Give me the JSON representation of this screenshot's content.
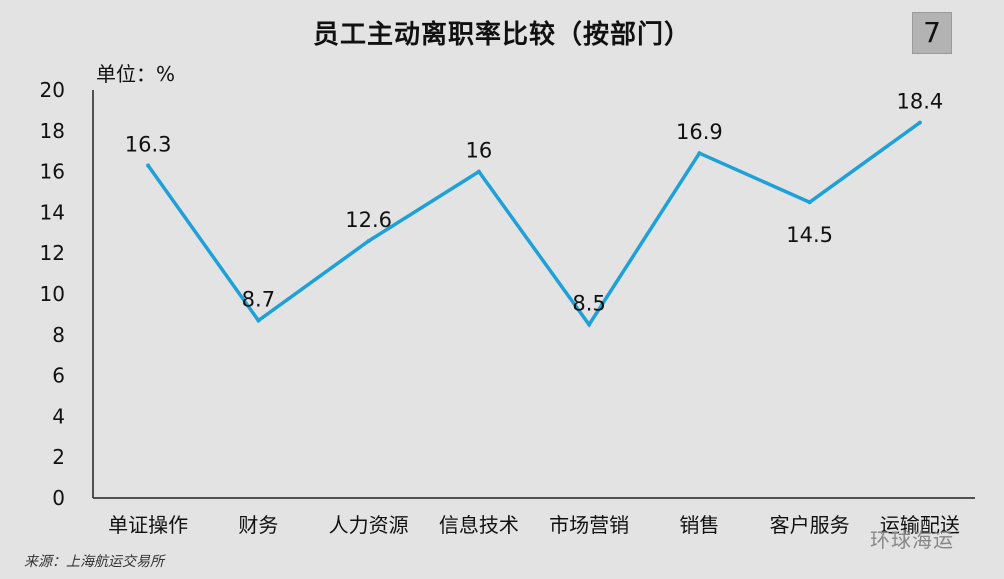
{
  "header": {
    "title": "员工主动离职率比较（按部门）",
    "page_number": "7"
  },
  "unit_label": "单位：%",
  "source_note": "来源：上海航运交易所",
  "watermark": "环球海运",
  "colors": {
    "background": "#e3e3e3",
    "line": "#1ea0d8",
    "axis": "#222222"
  },
  "chart_data": {
    "type": "line",
    "title": "员工主动离职率比较（按部门）",
    "xlabel": "",
    "ylabel": "单位：%",
    "ylim": [
      0,
      20
    ],
    "yticks": [
      0,
      2,
      4,
      6,
      8,
      10,
      12,
      14,
      16,
      18,
      20
    ],
    "grid": false,
    "categories": [
      "单证操作",
      "财务",
      "人力资源",
      "信息技术",
      "市场营销",
      "销售",
      "客户服务",
      "运输配送"
    ],
    "series": [
      {
        "values": [
          16.3,
          8.7,
          12.6,
          16,
          8.5,
          16.9,
          14.5,
          18.4
        ],
        "labels": [
          "16.3",
          "8.7",
          "12.6",
          "16",
          "8.5",
          "16.9",
          "14.5",
          "18.4"
        ]
      }
    ]
  }
}
